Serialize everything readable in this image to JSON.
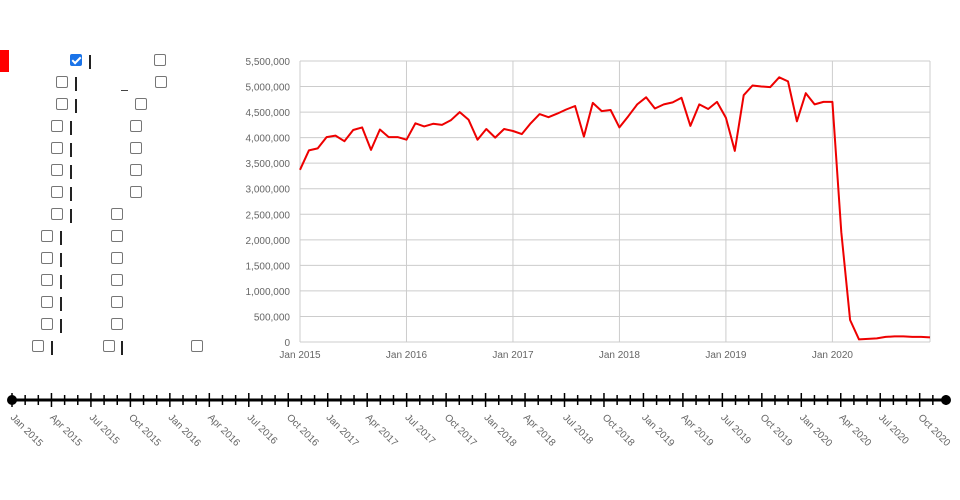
{
  "controls": {
    "rows": [
      {
        "checkbox_a_checked": true,
        "checkbox_b_checked": false
      },
      {
        "checkbox_a_checked": false,
        "checkbox_b_checked": false
      },
      {
        "checkbox_a_checked": false,
        "checkbox_b_checked": false
      },
      {
        "checkbox_a_checked": false,
        "checkbox_b_checked": false
      },
      {
        "checkbox_a_checked": false,
        "checkbox_b_checked": false
      },
      {
        "checkbox_a_checked": false,
        "checkbox_b_checked": false
      },
      {
        "checkbox_a_checked": false,
        "checkbox_b_checked": false
      },
      {
        "checkbox_a_checked": false,
        "checkbox_b_checked": false
      },
      {
        "checkbox_a_checked": false,
        "checkbox_b_checked": false
      },
      {
        "checkbox_a_checked": false,
        "checkbox_b_checked": false
      },
      {
        "checkbox_a_checked": false,
        "checkbox_b_checked": false
      },
      {
        "checkbox_a_checked": false,
        "checkbox_b_checked": false
      },
      {
        "checkbox_a_checked": false,
        "checkbox_b_checked": false
      },
      {
        "checkbox_a_checked": false,
        "checkbox_b_checked": false,
        "checkbox_c_checked": false
      }
    ]
  },
  "colors": {
    "line": "#ee0000",
    "accent": "#ff0000",
    "grid": "#cccccc",
    "tick_text": "#666666",
    "slider": "#000000"
  },
  "chart_data": {
    "type": "line",
    "title": "",
    "xlabel": "",
    "ylabel": "",
    "grid": true,
    "ylim": [
      0,
      5500000
    ],
    "xlim": [
      "2015-01",
      "2020-12"
    ],
    "y_ticks": [
      "0",
      "500,000",
      "1,000,000",
      "1,500,000",
      "2,000,000",
      "2,500,000",
      "3,000,000",
      "3,500,000",
      "4,000,000",
      "4,500,000",
      "5,000,000",
      "5,500,000"
    ],
    "x_ticks": [
      {
        "date": "2015-01",
        "label": "Jan 2015"
      },
      {
        "date": "2016-01",
        "label": "Jan 2016"
      },
      {
        "date": "2017-01",
        "label": "Jan 2017"
      },
      {
        "date": "2018-01",
        "label": "Jan 2018"
      },
      {
        "date": "2019-01",
        "label": "Jan 2019"
      },
      {
        "date": "2020-01",
        "label": "Jan 2020"
      }
    ],
    "x": [
      "2015-01",
      "2015-02",
      "2015-03",
      "2015-04",
      "2015-05",
      "2015-06",
      "2015-07",
      "2015-08",
      "2015-09",
      "2015-10",
      "2015-11",
      "2015-12",
      "2016-01",
      "2016-02",
      "2016-03",
      "2016-04",
      "2016-05",
      "2016-06",
      "2016-07",
      "2016-08",
      "2016-09",
      "2016-10",
      "2016-11",
      "2016-12",
      "2017-01",
      "2017-02",
      "2017-03",
      "2017-04",
      "2017-05",
      "2017-06",
      "2017-07",
      "2017-08",
      "2017-09",
      "2017-10",
      "2017-11",
      "2017-12",
      "2018-01",
      "2018-02",
      "2018-03",
      "2018-04",
      "2018-05",
      "2018-06",
      "2018-07",
      "2018-08",
      "2018-09",
      "2018-10",
      "2018-11",
      "2018-12",
      "2019-01",
      "2019-02",
      "2019-03",
      "2019-04",
      "2019-05",
      "2019-06",
      "2019-07",
      "2019-08",
      "2019-09",
      "2019-10",
      "2019-11",
      "2019-12",
      "2020-01",
      "2020-02",
      "2020-03",
      "2020-04",
      "2020-05",
      "2020-06",
      "2020-07",
      "2020-08",
      "2020-09",
      "2020-10",
      "2020-11",
      "2020-12"
    ],
    "series": [
      {
        "values": [
          3370000,
          3750000,
          3790000,
          4010000,
          4040000,
          3930000,
          4150000,
          4200000,
          3760000,
          4160000,
          4010000,
          4010000,
          3960000,
          4280000,
          4220000,
          4270000,
          4250000,
          4340000,
          4500000,
          4350000,
          3960000,
          4170000,
          4000000,
          4170000,
          4130000,
          4070000,
          4280000,
          4460000,
          4400000,
          4470000,
          4550000,
          4620000,
          4020000,
          4680000,
          4520000,
          4540000,
          4200000,
          4420000,
          4650000,
          4790000,
          4570000,
          4650000,
          4690000,
          4780000,
          4230000,
          4650000,
          4560000,
          4700000,
          4390000,
          3740000,
          4830000,
          5020000,
          5000000,
          4990000,
          5180000,
          5100000,
          4320000,
          4870000,
          4650000,
          4700000,
          4700000,
          2150000,
          430000,
          50000,
          60000,
          70000,
          100000,
          110000,
          110000,
          100000,
          100000,
          90000
        ]
      }
    ]
  },
  "timeline": {
    "labels": [
      "Jan 2015",
      "Apr 2015",
      "Jul 2015",
      "Oct 2015",
      "Jan 2016",
      "Apr 2016",
      "Jul 2016",
      "Oct 2016",
      "Jan 2017",
      "Apr 2017",
      "Jul 2017",
      "Oct 2017",
      "Jan 2018",
      "Apr 2018",
      "Jul 2018",
      "Oct 2018",
      "Jan 2019",
      "Apr 2019",
      "Jul 2019",
      "Oct 2019",
      "Jan 2020",
      "Apr 2020",
      "Jul 2020",
      "Oct 2020"
    ]
  }
}
